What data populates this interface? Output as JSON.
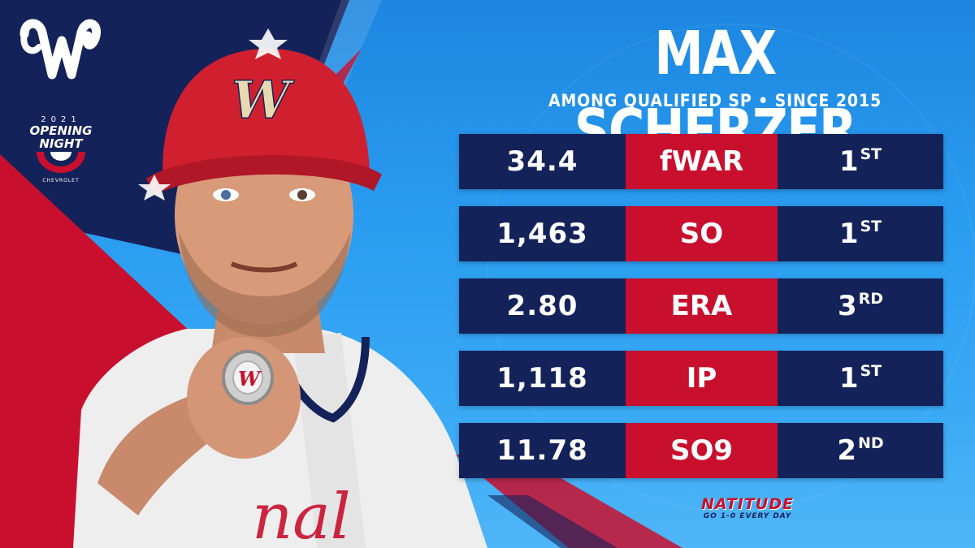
{
  "header": {
    "player_name": "MAX SCHERZER",
    "subtitle": "AMONG QUALIFIED SP • SINCE 2015"
  },
  "badge": {
    "year": "2021",
    "title": "OPENING NIGHT",
    "sponsor": "CHEVROLET"
  },
  "stats": [
    {
      "value": "34.4",
      "stat": "fWAR",
      "rank": "1",
      "rank_suffix": "ST"
    },
    {
      "value": "1,463",
      "stat": "SO",
      "rank": "1",
      "rank_suffix": "ST"
    },
    {
      "value": "2.80",
      "stat": "ERA",
      "rank": "3",
      "rank_suffix": "RD"
    },
    {
      "value": "1,118",
      "stat": "IP",
      "rank": "1",
      "rank_suffix": "ST"
    },
    {
      "value": "11.78",
      "stat": "SO9",
      "rank": "2",
      "rank_suffix": "ND"
    }
  ],
  "footer": {
    "brand": "NATITUDE",
    "tagline": "GO 1-0 EVERY DAY"
  },
  "colors": {
    "navy": "#14225a",
    "red": "#c8102e",
    "sky": "#2a9cf0"
  },
  "icons": {
    "team_logo": "curly-w-icon",
    "ring": "championship-ring-icon"
  }
}
